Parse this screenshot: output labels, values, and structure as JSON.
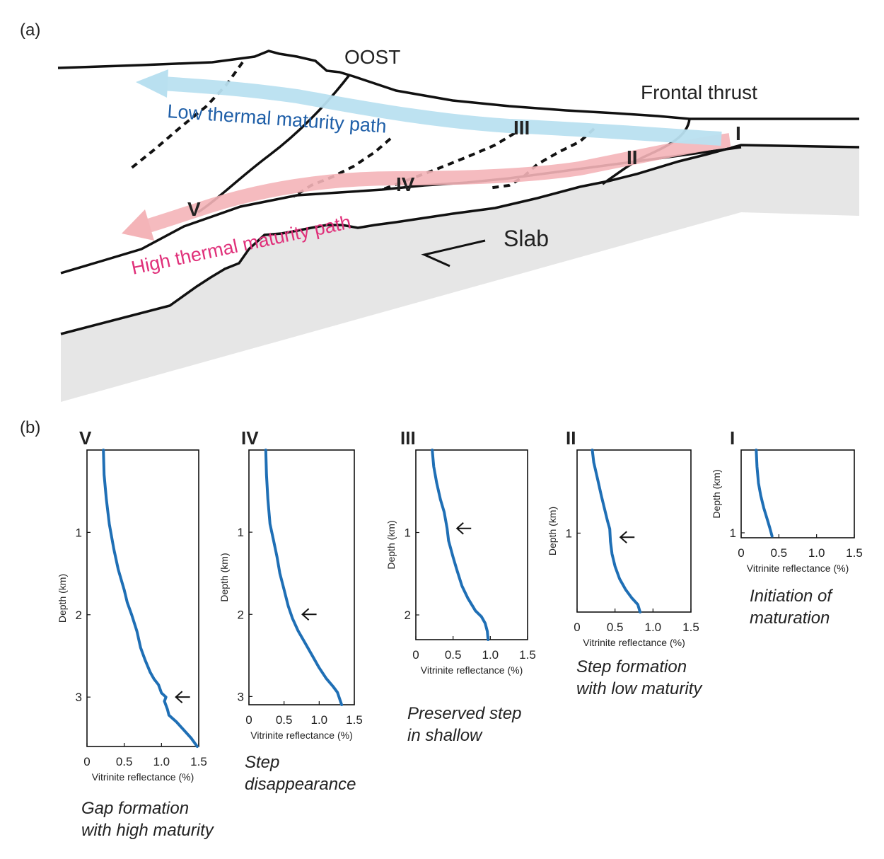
{
  "panel_a": {
    "label": "(a)",
    "oost": "OOST",
    "frontal_thrust": "Frontal thrust",
    "low_path": "Low thermal maturity path",
    "high_path": "High thermal maturity path",
    "slab": "Slab",
    "stations": [
      "I",
      "II",
      "III",
      "IV",
      "V"
    ],
    "colors": {
      "low_path": "#b9e0f0",
      "low_path_text": "#1f5fa8",
      "high_path": "#f4b4b8",
      "high_path_text": "#e0307a",
      "slab_fill": "#e6e6e6",
      "line": "#111111",
      "profile": "#1f6fb5"
    }
  },
  "panel_b": {
    "label": "(b)"
  },
  "chart_data": [
    {
      "type": "line",
      "roman": "V",
      "caption": [
        "Gap formation",
        "with high maturity"
      ],
      "xlabel": "Vitrinite reflectance (%)",
      "ylabel": "Depth (km)",
      "xlim": [
        0,
        1.5
      ],
      "ylim": [
        3.6,
        0
      ],
      "xticks": [
        0,
        0.5,
        1.0,
        1.5
      ],
      "xtick_labels": [
        "0",
        "0.5",
        "1.0",
        "1.5"
      ],
      "yticks": [
        1,
        2,
        3
      ],
      "arrow_depth": 3.0,
      "x": [
        0.22,
        0.23,
        0.26,
        0.3,
        0.36,
        0.42,
        0.5,
        0.54,
        0.6,
        0.67,
        0.72,
        0.78,
        0.85,
        0.9,
        0.96,
        1.0,
        1.06,
        1.04,
        1.08,
        1.1,
        1.2,
        1.3,
        1.4,
        1.48
      ],
      "y": [
        0,
        0.3,
        0.6,
        0.9,
        1.2,
        1.45,
        1.7,
        1.85,
        2.0,
        2.2,
        2.4,
        2.55,
        2.7,
        2.78,
        2.85,
        2.95,
        3.0,
        3.05,
        3.15,
        3.22,
        3.3,
        3.4,
        3.5,
        3.6
      ]
    },
    {
      "type": "line",
      "roman": "IV",
      "caption": [
        "Step",
        "disappearance"
      ],
      "xlabel": "Vitrinite reflectance (%)",
      "ylabel": "Depth (km)",
      "xlim": [
        0,
        1.5
      ],
      "ylim": [
        3.1,
        0
      ],
      "xticks": [
        0,
        0.5,
        1.0,
        1.5
      ],
      "xtick_labels": [
        "0",
        "0.5",
        "1.0",
        "1.5"
      ],
      "yticks": [
        1,
        2,
        3
      ],
      "arrow_depth": 2.0,
      "x": [
        0.24,
        0.25,
        0.27,
        0.3,
        0.35,
        0.4,
        0.44,
        0.5,
        0.56,
        0.62,
        0.7,
        0.8,
        0.9,
        1.0,
        1.1,
        1.2,
        1.26,
        1.32
      ],
      "y": [
        0,
        0.3,
        0.6,
        0.9,
        1.1,
        1.3,
        1.5,
        1.7,
        1.9,
        2.05,
        2.2,
        2.35,
        2.5,
        2.65,
        2.78,
        2.88,
        2.95,
        3.1
      ]
    },
    {
      "type": "line",
      "roman": "III",
      "caption": [
        "Preserved step",
        "in shallow"
      ],
      "xlabel": "Vitrinite reflectance (%)",
      "ylabel": "Depth (km)",
      "xlim": [
        0,
        1.5
      ],
      "ylim": [
        2.3,
        0
      ],
      "xticks": [
        0,
        0.5,
        1.0,
        1.5
      ],
      "xtick_labels": [
        "0",
        "0.5",
        "1.0",
        "1.5"
      ],
      "yticks": [
        1,
        2
      ],
      "arrow_depth": 0.95,
      "x": [
        0.22,
        0.24,
        0.28,
        0.33,
        0.38,
        0.4,
        0.42,
        0.44,
        0.5,
        0.55,
        0.62,
        0.7,
        0.8,
        0.88,
        0.93,
        0.96,
        0.97
      ],
      "y": [
        0,
        0.2,
        0.4,
        0.6,
        0.75,
        0.85,
        0.95,
        1.1,
        1.3,
        1.45,
        1.65,
        1.8,
        1.95,
        2.02,
        2.1,
        2.2,
        2.3
      ]
    },
    {
      "type": "line",
      "roman": "II",
      "caption": [
        "Step formation",
        "with low maturity"
      ],
      "xlabel": "Vitrinite reflectance (%)",
      "ylabel": "Depth (km)",
      "xlim": [
        0,
        1.5
      ],
      "ylim": [
        1.95,
        0
      ],
      "xticks": [
        0,
        0.5,
        1.0,
        1.5
      ],
      "xtick_labels": [
        "0",
        "0.5",
        "1.0",
        "1.5"
      ],
      "yticks": [
        1
      ],
      "arrow_depth": 1.05,
      "x": [
        0.2,
        0.22,
        0.27,
        0.32,
        0.36,
        0.4,
        0.43,
        0.44,
        0.46,
        0.5,
        0.56,
        0.64,
        0.72,
        0.8,
        0.83
      ],
      "y": [
        0,
        0.15,
        0.35,
        0.55,
        0.7,
        0.85,
        0.95,
        1.1,
        1.25,
        1.4,
        1.55,
        1.68,
        1.78,
        1.86,
        1.95
      ]
    },
    {
      "type": "line",
      "roman": "I",
      "caption": [
        "Initiation of",
        "maturation"
      ],
      "xlabel": "Vitrinite reflectance (%)",
      "ylabel": "Depth (km)",
      "xlim": [
        0,
        1.5
      ],
      "ylim": [
        1.06,
        0
      ],
      "xticks": [
        0,
        0.5,
        1.0,
        1.5
      ],
      "xtick_labels": [
        "0",
        "0.5",
        "1.0",
        "1.5"
      ],
      "yticks": [
        1
      ],
      "arrow_depth": null,
      "x": [
        0.2,
        0.21,
        0.23,
        0.26,
        0.3,
        0.34,
        0.38,
        0.41
      ],
      "y": [
        0,
        0.2,
        0.4,
        0.55,
        0.7,
        0.82,
        0.94,
        1.04
      ]
    }
  ]
}
